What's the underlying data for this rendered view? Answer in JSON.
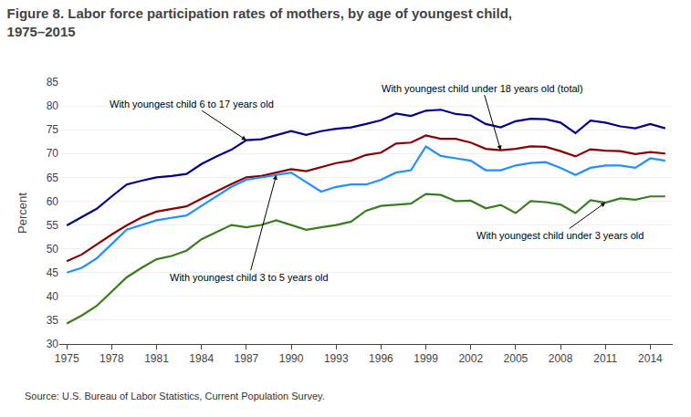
{
  "chart_data": {
    "type": "line",
    "title": "Figure 8. Labor force participation rates of mothers, by age of youngest child,",
    "subtitle": "1975–2015",
    "ylabel": "Percent",
    "source": "Source: U.S. Bureau of Labor Statistics, Current Population Survey.",
    "x": [
      1975,
      1976,
      1977,
      1978,
      1979,
      1980,
      1981,
      1982,
      1983,
      1984,
      1985,
      1986,
      1987,
      1988,
      1989,
      1990,
      1991,
      1992,
      1993,
      1994,
      1995,
      1996,
      1997,
      1998,
      1999,
      2000,
      2001,
      2002,
      2003,
      2004,
      2005,
      2006,
      2007,
      2008,
      2009,
      2010,
      2011,
      2012,
      2013,
      2014,
      2015
    ],
    "series": [
      {
        "name": "With youngest child 6 to 17 years old",
        "color": "#00008B",
        "values": [
          54.9,
          56.7,
          58.4,
          61.0,
          63.5,
          64.3,
          65.0,
          65.3,
          65.7,
          67.8,
          69.4,
          70.8,
          72.8,
          73.0,
          73.8,
          74.7,
          73.9,
          74.7,
          75.2,
          75.5,
          76.2,
          77.0,
          78.4,
          77.9,
          79.0,
          79.2,
          78.3,
          78.0,
          76.2,
          75.5,
          76.8,
          77.3,
          77.2,
          76.5,
          74.3,
          76.9,
          76.5,
          75.7,
          75.3,
          76.2,
          75.3
        ]
      },
      {
        "name": "With youngest child under 18 years old (total)",
        "color": "#8B0000",
        "values": [
          47.4,
          48.8,
          50.9,
          53.0,
          54.9,
          56.6,
          57.8,
          58.3,
          58.9,
          60.5,
          62.1,
          63.6,
          65.0,
          65.3,
          66.0,
          66.7,
          66.3,
          67.2,
          68.0,
          68.5,
          69.7,
          70.2,
          72.1,
          72.3,
          73.8,
          73.1,
          73.1,
          72.3,
          71.0,
          70.7,
          71.0,
          71.5,
          71.4,
          70.5,
          69.4,
          70.9,
          70.6,
          70.5,
          69.9,
          70.3,
          70.0
        ]
      },
      {
        "name": "With youngest child 3 to 5 years old",
        "color": "#1E90FF",
        "values": [
          45.0,
          46.0,
          48.0,
          51.0,
          54.0,
          55.0,
          56.0,
          56.5,
          57.0,
          59.0,
          61.0,
          63.0,
          64.5,
          65.0,
          65.5,
          66.0,
          64.0,
          62.0,
          63.0,
          63.5,
          63.5,
          64.5,
          66.0,
          66.5,
          71.5,
          69.5,
          69.0,
          68.5,
          66.5,
          66.5,
          67.5,
          68.0,
          68.2,
          67.0,
          65.5,
          67.0,
          67.5,
          67.5,
          67.0,
          69.0,
          68.5
        ]
      },
      {
        "name": "With youngest child under 3 years old",
        "color": "#3a7d1e",
        "values": [
          34.3,
          36.0,
          38.0,
          41.0,
          44.0,
          46.0,
          47.8,
          48.5,
          49.6,
          52.0,
          53.5,
          55.0,
          54.5,
          55.0,
          56.0,
          55.0,
          54.0,
          54.5,
          55.0,
          55.7,
          58.0,
          59.0,
          59.2,
          59.5,
          61.5,
          61.3,
          60.0,
          60.1,
          58.5,
          59.2,
          57.5,
          60.0,
          59.8,
          59.3,
          57.5,
          60.2,
          59.7,
          60.6,
          60.3,
          61.0,
          61.0
        ]
      }
    ],
    "xlim": [
      1974.5,
      2015.5
    ],
    "xticks": [
      1975,
      1978,
      1981,
      1984,
      1987,
      1990,
      1993,
      1996,
      1999,
      2002,
      2005,
      2008,
      2011,
      2014
    ],
    "ylim": [
      30,
      85
    ],
    "yticks": [
      30,
      35,
      40,
      45,
      50,
      55,
      60,
      65,
      70,
      75,
      80,
      85
    ],
    "grid": "y",
    "annotations": [
      {
        "text": "With youngest child under 18 years old (total)",
        "x": 2004
      },
      {
        "text": "With youngest child 6 to 17 years old",
        "x": 1987
      },
      {
        "text": "With youngest child 3 to 5 years old",
        "x": 1989
      },
      {
        "text": "With youngest child under 3 years old",
        "x": 2011
      }
    ]
  }
}
